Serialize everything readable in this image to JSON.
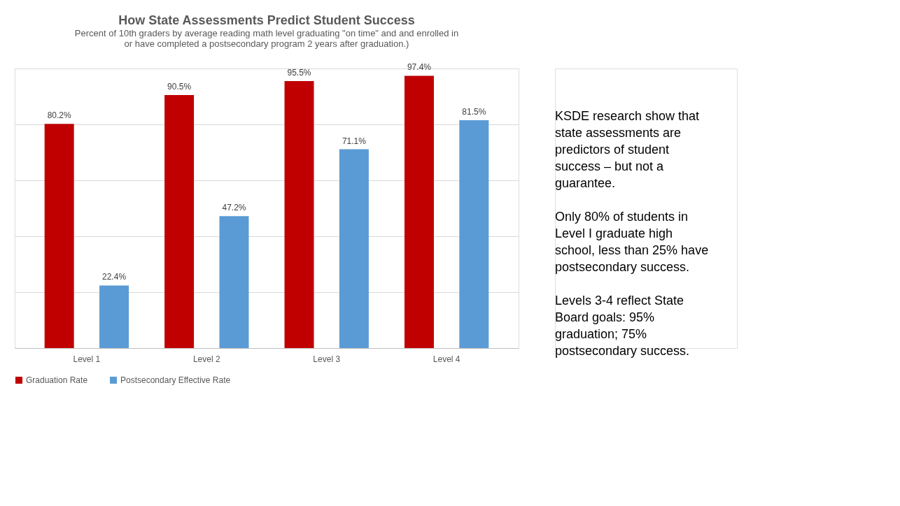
{
  "chart_data": {
    "type": "bar",
    "title": "How State Assessments Predict Student Success",
    "subtitle": "Percent of 10th graders by average reading math level graduating \"on time\" and and enrolled in or have completed a postsecondary program 2 years after graduation.)",
    "categories": [
      "Level 1",
      "Level 2",
      "Level 3",
      "Level 4"
    ],
    "series": [
      {
        "name": "Graduation Rate",
        "color": "#c00000",
        "values": [
          80.2,
          90.5,
          95.5,
          97.4
        ],
        "value_labels": [
          "80.2%",
          "90.5%",
          "95.5%",
          "97.4%"
        ]
      },
      {
        "name": "Postsecondary Effective Rate",
        "color": "#5b9bd5",
        "values": [
          22.4,
          47.2,
          71.1,
          81.5
        ],
        "value_labels": [
          "22.4%",
          "47.2%",
          "71.1%",
          "81.5%"
        ]
      }
    ],
    "tick_labels": "x",
    "grid": "y",
    "legend": "bottom",
    "annotations": [
      "KSDE research show that state assessments are predictors of student success – but not a guarantee.",
      "Only 80% of students in Level I graduate high school, less than 25% have postsecondary success.",
      "Levels 3-4 reflect State Board goals: 95% graduation; 75% postsecondary success."
    ]
  }
}
